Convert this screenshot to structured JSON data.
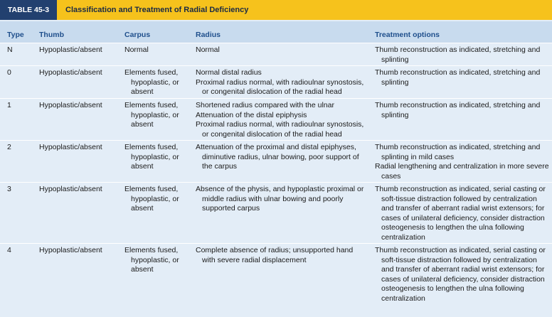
{
  "header": {
    "label": "TABLE 45-3",
    "title": "Classification and Treatment of Radial Deficiency"
  },
  "table": {
    "columns": [
      "Type",
      "Thumb",
      "Carpus",
      "Radius",
      "Treatment options"
    ],
    "rows": [
      {
        "type": "N",
        "thumb": "Hypoplastic/absent",
        "carpus": [
          "Normal"
        ],
        "radius": [
          "Normal"
        ],
        "treatment": [
          "Thumb reconstruction as indicated, stretching and splinting"
        ]
      },
      {
        "type": "0",
        "thumb": "Hypoplastic/absent",
        "carpus": [
          "Elements fused, hypoplastic, or absent"
        ],
        "radius": [
          "Normal distal radius",
          "Proximal radius normal, with radioulnar synostosis, or congenital dislocation of the radial head"
        ],
        "treatment": [
          "Thumb reconstruction as indicated, stretching and splinting"
        ]
      },
      {
        "type": "1",
        "thumb": "Hypoplastic/absent",
        "carpus": [
          "Elements fused, hypoplastic, or absent"
        ],
        "radius": [
          "Shortened radius compared with the ulnar",
          "Attenuation of the distal epiphysis",
          "Proximal radius normal, with radioulnar synostosis, or congenital dislocation of the radial head"
        ],
        "treatment": [
          "Thumb reconstruction as indicated, stretching and splinting"
        ]
      },
      {
        "type": "2",
        "thumb": "Hypoplastic/absent",
        "carpus": [
          "Elements fused, hypoplastic, or absent"
        ],
        "radius": [
          "Attenuation of the proximal and distal epiphyses, diminutive radius, ulnar bowing, poor support of the carpus"
        ],
        "treatment": [
          "Thumb reconstruction as indicated, stretching and splinting in mild cases",
          "Radial lengthening and centralization in more severe cases"
        ]
      },
      {
        "type": "3",
        "thumb": "Hypoplastic/absent",
        "carpus": [
          "Elements fused, hypoplastic, or absent"
        ],
        "radius": [
          "Absence of the physis, and hypoplastic proximal or middle radius with ulnar bowing and poorly supported carpus"
        ],
        "treatment": [
          "Thumb reconstruction as indicated, serial casting or soft-tissue distraction followed by centralization and transfer of aberrant radial wrist extensors; for cases of unilateral deficiency, consider distraction osteogenesis to lengthen the ulna following centralization"
        ]
      },
      {
        "type": "4",
        "thumb": "Hypoplastic/absent",
        "carpus": [
          "Elements fused, hypoplastic, or absent"
        ],
        "radius": [
          "Complete absence of radius; unsupported hand with severe radial displacement"
        ],
        "treatment": [
          "Thumb reconstruction as indicated, serial casting or soft-tissue distraction followed by centralization and transfer of aberrant radial wrist extensors; for cases of unilateral deficiency, consider distraction osteogenesis to lengthen the ulna following centralization"
        ]
      }
    ]
  }
}
